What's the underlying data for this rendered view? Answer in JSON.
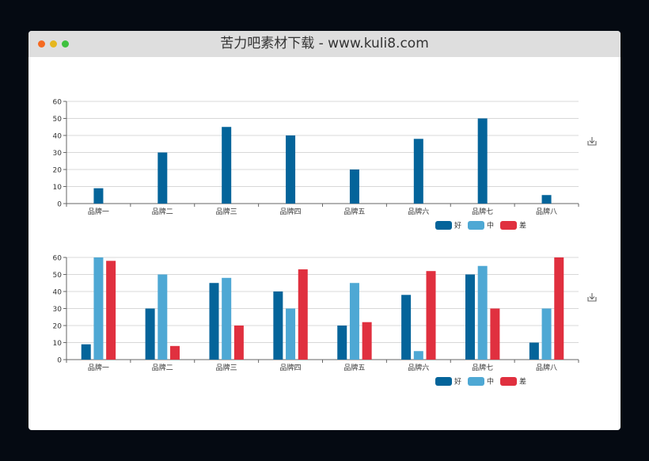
{
  "window": {
    "title": "苦力吧素材下载 - www.kuli8.com"
  },
  "colors": {
    "good": "#04649a",
    "mid": "#4ea8d4",
    "bad": "#e0303f"
  },
  "icons": {
    "download": "download-icon"
  },
  "chart_data": [
    {
      "type": "bar",
      "categories": [
        "品牌一",
        "品牌二",
        "品牌三",
        "品牌四",
        "品牌五",
        "品牌六",
        "品牌七",
        "品牌八"
      ],
      "series": [
        {
          "name": "好",
          "values": [
            9,
            30,
            45,
            40,
            20,
            38,
            50,
            5
          ]
        }
      ],
      "legend": [
        "好",
        "中",
        "差"
      ],
      "ylim": [
        0,
        60
      ],
      "yticks": [
        0,
        10,
        20,
        30,
        40,
        50,
        60
      ],
      "grid": true,
      "legend_position": "bottom-right"
    },
    {
      "type": "bar",
      "categories": [
        "品牌一",
        "品牌二",
        "品牌三",
        "品牌四",
        "品牌五",
        "品牌六",
        "品牌七",
        "品牌八"
      ],
      "series": [
        {
          "name": "好",
          "values": [
            9,
            30,
            45,
            40,
            20,
            38,
            50,
            10
          ]
        },
        {
          "name": "中",
          "values": [
            60,
            50,
            48,
            30,
            45,
            5,
            55,
            30
          ]
        },
        {
          "name": "差",
          "values": [
            58,
            8,
            20,
            53,
            22,
            52,
            30,
            60
          ]
        }
      ],
      "legend": [
        "好",
        "中",
        "差"
      ],
      "ylim": [
        0,
        60
      ],
      "yticks": [
        0,
        10,
        20,
        30,
        40,
        50,
        60
      ],
      "grid": true,
      "legend_position": "bottom-right"
    }
  ]
}
